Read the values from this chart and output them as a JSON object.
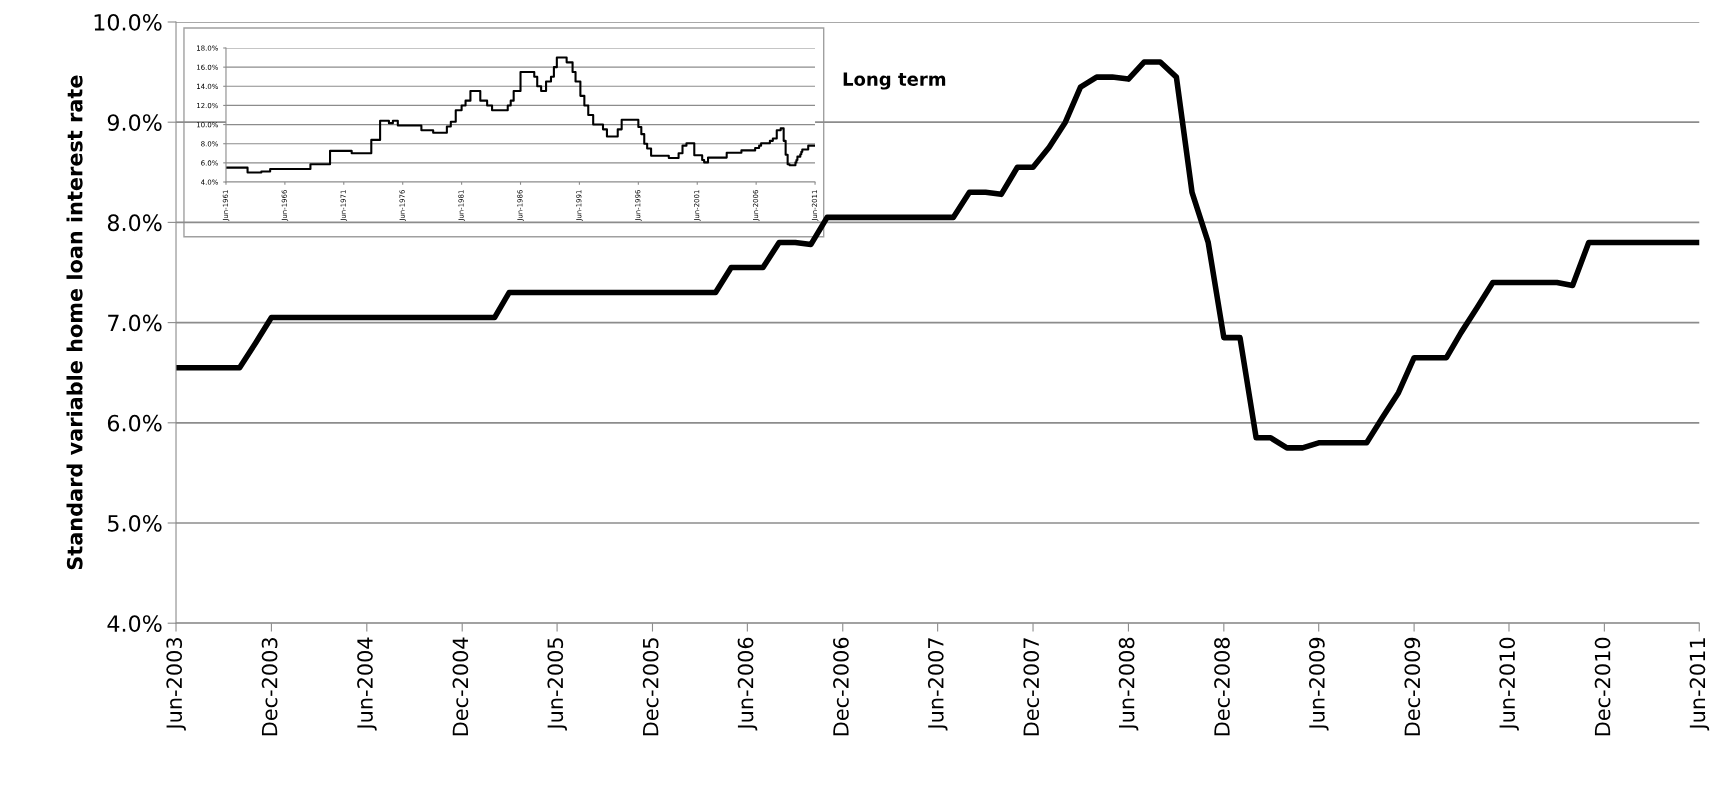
{
  "chart_data": [
    {
      "type": "line",
      "ylabel": "Standard variable home loan interest rate",
      "annotations": [
        "Long term"
      ],
      "x": [
        "2003-06",
        "2003-07",
        "2003-08",
        "2003-09",
        "2003-10",
        "2003-11",
        "2003-12",
        "2004-01",
        "2004-06",
        "2004-12",
        "2005-01",
        "2005-02",
        "2005-03",
        "2005-04",
        "2006-03",
        "2006-04",
        "2006-05",
        "2006-06",
        "2006-07",
        "2006-08",
        "2006-09",
        "2006-10",
        "2006-11",
        "2006-12",
        "2007-06",
        "2007-07",
        "2007-08",
        "2007-09",
        "2007-10",
        "2007-11",
        "2007-12",
        "2008-01",
        "2008-02",
        "2008-03",
        "2008-04",
        "2008-05",
        "2008-06",
        "2008-07",
        "2008-08",
        "2008-09",
        "2008-10",
        "2008-11",
        "2008-12",
        "2009-01",
        "2009-02",
        "2009-03",
        "2009-04",
        "2009-05",
        "2009-06",
        "2009-07",
        "2009-08",
        "2009-09",
        "2009-10",
        "2009-11",
        "2009-12",
        "2010-01",
        "2010-02",
        "2010-03",
        "2010-04",
        "2010-05",
        "2010-06",
        "2010-09",
        "2010-10",
        "2010-11",
        "2010-12",
        "2011-06"
      ],
      "series": [
        {
          "color": "#000000",
          "values": [
            6.55,
            6.55,
            6.55,
            6.55,
            6.55,
            6.8,
            7.05,
            7.05,
            7.05,
            7.05,
            7.05,
            7.05,
            7.3,
            7.3,
            7.3,
            7.3,
            7.55,
            7.55,
            7.55,
            7.8,
            7.8,
            7.78,
            8.05,
            8.05,
            8.05,
            8.05,
            8.3,
            8.3,
            8.28,
            8.55,
            8.55,
            8.75,
            9.0,
            9.35,
            9.45,
            9.45,
            9.43,
            9.6,
            9.6,
            9.45,
            8.3,
            7.8,
            6.85,
            6.85,
            5.85,
            5.85,
            5.75,
            5.75,
            5.8,
            5.8,
            5.8,
            5.8,
            6.05,
            6.3,
            6.65,
            6.65,
            6.65,
            6.9,
            7.15,
            7.4,
            7.4,
            7.4,
            7.37,
            7.8,
            7.8,
            7.8
          ]
        }
      ],
      "xlim": [
        "2003-06",
        "2011-06"
      ],
      "xticks": [
        {
          "value": "2003-06",
          "label": "Jun-2003"
        },
        {
          "value": "2003-12",
          "label": "Dec-2003"
        },
        {
          "value": "2004-06",
          "label": "Jun-2004"
        },
        {
          "value": "2004-12",
          "label": "Dec-2004"
        },
        {
          "value": "2005-06",
          "label": "Jun-2005"
        },
        {
          "value": "2005-12",
          "label": "Dec-2005"
        },
        {
          "value": "2006-06",
          "label": "Jun-2006"
        },
        {
          "value": "2006-12",
          "label": "Dec-2006"
        },
        {
          "value": "2007-06",
          "label": "Jun-2007"
        },
        {
          "value": "2007-12",
          "label": "Dec-2007"
        },
        {
          "value": "2008-06",
          "label": "Jun-2008"
        },
        {
          "value": "2008-12",
          "label": "Dec-2008"
        },
        {
          "value": "2009-06",
          "label": "Jun-2009"
        },
        {
          "value": "2009-12",
          "label": "Dec-2009"
        },
        {
          "value": "2010-06",
          "label": "Jun-2010"
        },
        {
          "value": "2010-12",
          "label": "Dec-2010"
        },
        {
          "value": "2011-06",
          "label": "Jun-2011"
        }
      ],
      "ylim": [
        4,
        10
      ],
      "yticks": [
        {
          "value": 4,
          "label": "4.0%"
        },
        {
          "value": 5,
          "label": "5.0%"
        },
        {
          "value": 6,
          "label": "6.0%"
        },
        {
          "value": 7,
          "label": "7.0%"
        },
        {
          "value": 8,
          "label": "8.0%"
        },
        {
          "value": 9,
          "label": "9.0%"
        },
        {
          "value": 10,
          "label": "10.0%"
        }
      ],
      "grid": "y",
      "legend": false,
      "line_style": "solid",
      "marker": "none"
    },
    {
      "type": "step",
      "x": [
        "1961-06",
        "1963-04",
        "1964-06",
        "1965-03",
        "1968-08",
        "1970-04",
        "1972-02",
        "1973-10",
        "1974-07",
        "1975-04",
        "1975-08",
        "1976-01",
        "1978-01",
        "1979-01",
        "1980-03",
        "1980-07",
        "1980-12",
        "1981-06",
        "1981-10",
        "1982-03",
        "1983-01",
        "1983-08",
        "1984-01",
        "1985-05",
        "1985-08",
        "1985-11",
        "1986-06",
        "1987-08",
        "1987-11",
        "1988-03",
        "1988-08",
        "1989-01",
        "1989-04",
        "1989-07",
        "1990-05",
        "1990-11",
        "1991-02",
        "1991-07",
        "1991-11",
        "1992-03",
        "1992-08",
        "1993-06",
        "1993-10",
        "1994-09",
        "1995-01",
        "1996-06",
        "1996-09",
        "1996-12",
        "1997-03",
        "1997-07",
        "1999-01",
        "1999-11",
        "2000-03",
        "2000-07",
        "2001-03",
        "2001-11",
        "2002-01",
        "2002-05",
        "2003-12",
        "2005-03",
        "2006-05",
        "2006-09",
        "2006-11",
        "2007-08",
        "2007-11",
        "2008-03",
        "2008-07",
        "2008-10",
        "2008-12",
        "2009-02",
        "2009-04",
        "2009-10",
        "2009-11",
        "2009-12",
        "2010-03",
        "2010-04",
        "2010-05",
        "2010-11",
        "2011-06"
      ],
      "series": [
        {
          "color": "#000000",
          "values": [
            5.5,
            5.0,
            5.1,
            5.35,
            5.85,
            7.25,
            7.0,
            8.4,
            10.4,
            10.15,
            10.4,
            9.9,
            9.4,
            9.15,
            9.8,
            10.3,
            11.5,
            12.0,
            12.5,
            13.5,
            12.5,
            12.0,
            11.5,
            12.0,
            12.5,
            13.5,
            15.5,
            15.0,
            14.0,
            13.5,
            14.5,
            15.0,
            16.0,
            17.0,
            16.5,
            15.5,
            14.5,
            13.0,
            12.0,
            11.0,
            10.0,
            9.5,
            8.75,
            9.5,
            10.5,
            9.75,
            9.0,
            8.0,
            7.5,
            6.75,
            6.5,
            7.0,
            7.8,
            8.05,
            6.8,
            6.3,
            6.05,
            6.55,
            7.05,
            7.3,
            7.55,
            7.8,
            8.05,
            8.3,
            8.55,
            9.4,
            9.6,
            8.3,
            6.85,
            5.85,
            5.75,
            6.05,
            6.3,
            6.65,
            6.9,
            7.15,
            7.4,
            7.8,
            7.8
          ]
        }
      ],
      "xlim": [
        "1961-06",
        "2011-06"
      ],
      "xticks": [
        {
          "value": "1961-06",
          "label": "Jun-1961"
        },
        {
          "value": "1966-06",
          "label": "Jun-1966"
        },
        {
          "value": "1971-06",
          "label": "Jun-1971"
        },
        {
          "value": "1976-06",
          "label": "Jun-1976"
        },
        {
          "value": "1981-06",
          "label": "Jun-1981"
        },
        {
          "value": "1986-06",
          "label": "Jun-1986"
        },
        {
          "value": "1991-06",
          "label": "Jun-1991"
        },
        {
          "value": "1996-06",
          "label": "Jun-1996"
        },
        {
          "value": "2001-06",
          "label": "Jun-2001"
        },
        {
          "value": "2006-06",
          "label": "Jun-2006"
        },
        {
          "value": "2011-06",
          "label": "Jun-2011"
        }
      ],
      "ylim": [
        4,
        18
      ],
      "yticks": [
        {
          "value": 4,
          "label": "4.0%"
        },
        {
          "value": 6,
          "label": "6.0%"
        },
        {
          "value": 8,
          "label": "8.0%"
        },
        {
          "value": 10,
          "label": "10.0%"
        },
        {
          "value": 12,
          "label": "12.0%"
        },
        {
          "value": 14,
          "label": "14.0%"
        },
        {
          "value": 16,
          "label": "16.0%"
        },
        {
          "value": 18,
          "label": "18.0%"
        }
      ],
      "grid": "y",
      "legend": false,
      "line_style": "solid",
      "marker": "none"
    }
  ]
}
